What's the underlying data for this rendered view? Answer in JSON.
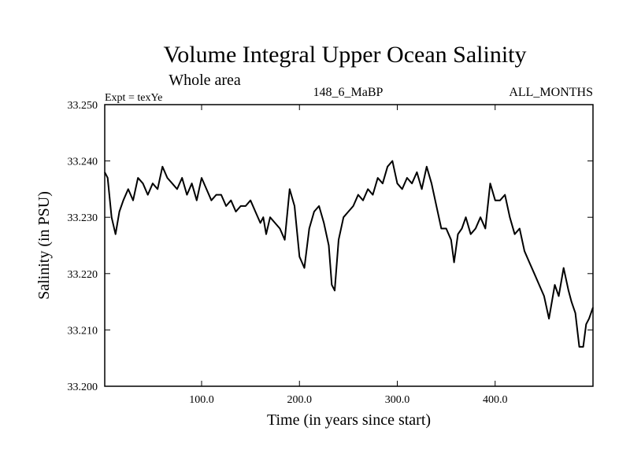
{
  "chart_data": {
    "type": "line",
    "title": "Volume Integral Upper Ocean Salinity",
    "subtitle": "Whole area",
    "left_label": "Expt = texYe",
    "center_label": "148_6_MaBP",
    "right_label": "ALL_MONTHS",
    "xlabel": "Time (in years since start)",
    "ylabel": "Salinity (in PSU)",
    "xlim": [
      1,
      500
    ],
    "ylim": [
      33.2,
      33.25
    ],
    "x_ticks": [
      100,
      200,
      300,
      400
    ],
    "x_tick_labels": [
      "100.0",
      "200.0",
      "300.0",
      "400.0"
    ],
    "y_ticks": [
      33.2,
      33.21,
      33.22,
      33.23,
      33.24,
      33.25
    ],
    "y_tick_labels": [
      "33.200",
      "33.210",
      "33.220",
      "33.230",
      "33.240",
      "33.250"
    ],
    "grid": false,
    "line_color": "#000000",
    "series": [
      {
        "x": [
          1,
          4,
          8,
          12,
          16,
          20,
          25,
          30,
          35,
          40,
          45,
          50,
          55,
          60,
          65,
          70,
          75,
          80,
          85,
          90,
          95,
          100,
          105,
          110,
          115,
          120,
          125,
          130,
          135,
          140,
          145,
          150,
          155,
          160,
          163,
          166,
          170,
          175,
          180,
          185,
          190,
          195,
          200,
          205,
          210,
          215,
          220,
          225,
          230,
          233,
          236,
          240,
          245,
          250,
          255,
          260,
          265,
          270,
          275,
          280,
          285,
          290,
          295,
          300,
          305,
          310,
          315,
          320,
          325,
          330,
          335,
          340,
          345,
          350,
          355,
          358,
          362,
          366,
          370,
          375,
          380,
          385,
          390,
          395,
          400,
          405,
          410,
          415,
          420,
          425,
          430,
          435,
          440,
          445,
          450,
          455,
          458,
          461,
          465,
          470,
          475,
          478,
          482,
          486,
          490,
          493,
          496,
          500
        ],
        "y": [
          33.238,
          33.237,
          33.23,
          33.227,
          33.231,
          33.233,
          33.235,
          33.233,
          33.237,
          33.236,
          33.234,
          33.236,
          33.235,
          33.239,
          33.237,
          33.236,
          33.235,
          33.237,
          33.234,
          33.236,
          33.233,
          33.237,
          33.235,
          33.233,
          33.234,
          33.234,
          33.232,
          33.233,
          33.231,
          33.232,
          33.232,
          33.233,
          33.231,
          33.229,
          33.23,
          33.227,
          33.23,
          33.229,
          33.228,
          33.226,
          33.235,
          33.232,
          33.223,
          33.221,
          33.228,
          33.231,
          33.232,
          33.229,
          33.225,
          33.218,
          33.217,
          33.226,
          33.23,
          33.231,
          33.232,
          33.234,
          33.233,
          33.235,
          33.234,
          33.237,
          33.236,
          33.239,
          33.24,
          33.236,
          33.235,
          33.237,
          33.236,
          33.238,
          33.235,
          33.239,
          33.236,
          33.232,
          33.228,
          33.228,
          33.226,
          33.222,
          33.227,
          33.228,
          33.23,
          33.227,
          33.228,
          33.23,
          33.228,
          33.236,
          33.233,
          33.233,
          33.234,
          33.23,
          33.227,
          33.228,
          33.224,
          33.222,
          33.22,
          33.218,
          33.216,
          33.212,
          33.215,
          33.218,
          33.216,
          33.221,
          33.217,
          33.215,
          33.213,
          33.207,
          33.207,
          33.211,
          33.212,
          33.214
        ]
      }
    ]
  }
}
